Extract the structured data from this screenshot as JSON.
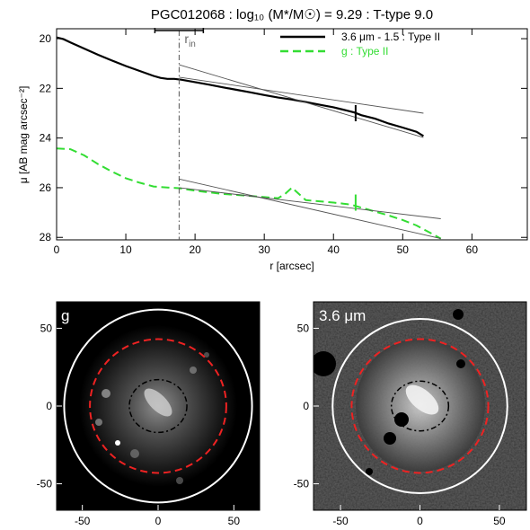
{
  "chart_data": [
    {
      "type": "line",
      "title": "PGC012068 : log₁₀ (M*/M☉) = 9.29 : T-type 9.0",
      "xlabel": "r [arcsec]",
      "ylabel": "μ [AB mag arcsec⁻²]",
      "xlim": [
        0,
        68
      ],
      "ylim": [
        28.1,
        19.6
      ],
      "y_inverted": true,
      "x_ticks": [
        0,
        10,
        20,
        30,
        40,
        50,
        60
      ],
      "y_ticks": [
        20,
        22,
        24,
        26,
        28
      ],
      "r_in_label": "r",
      "r_in_sub": "in",
      "r_in": 17.7,
      "r_in_errorbar": [
        14.2,
        21.2
      ],
      "break_marks": [
        {
          "series": "3.6 μm - 1.5 : Type II",
          "x": 43.2,
          "y": 23.0
        },
        {
          "series": "g : Type II",
          "x": 43.2,
          "y": 26.6
        }
      ],
      "legend_position": "top-right",
      "series": [
        {
          "name": "3.6 μm - 1.5 : Type II",
          "color": "#000000",
          "style": "solid",
          "x": [
            0,
            1,
            2,
            4,
            6,
            8,
            10,
            12,
            14,
            15,
            16,
            17,
            18,
            20,
            22,
            24,
            26,
            28,
            30,
            32,
            34,
            36,
            38,
            40,
            42,
            43,
            44,
            46,
            48,
            50,
            52,
            53
          ],
          "y": [
            19.95,
            20.02,
            20.15,
            20.4,
            20.65,
            20.88,
            21.1,
            21.3,
            21.5,
            21.58,
            21.62,
            21.62,
            21.65,
            21.75,
            21.85,
            21.96,
            22.06,
            22.16,
            22.27,
            22.37,
            22.45,
            22.55,
            22.66,
            22.76,
            22.9,
            22.97,
            23.08,
            23.22,
            23.42,
            23.58,
            23.75,
            23.92
          ]
        },
        {
          "name": "3.6 μm inner fit",
          "color": "#555555",
          "style": "thin",
          "x": [
            17.7,
            53
          ],
          "y": [
            21.55,
            23.0
          ]
        },
        {
          "name": "3.6 μm outer fit",
          "color": "#555555",
          "style": "thin",
          "x": [
            17.7,
            53
          ],
          "y": [
            21.05,
            23.98
          ]
        },
        {
          "name": "g : Type II",
          "color": "#33dd33",
          "style": "dashed",
          "x": [
            0,
            2,
            4,
            6,
            8,
            10,
            12,
            14,
            16,
            17.7,
            20,
            24,
            28,
            30,
            32,
            33,
            34,
            35,
            36,
            38,
            40,
            42,
            43,
            44,
            46,
            48,
            50,
            52,
            54,
            55.5
          ],
          "y": [
            24.42,
            24.45,
            24.7,
            25.05,
            25.35,
            25.62,
            25.8,
            25.95,
            25.99,
            26.02,
            26.12,
            26.25,
            26.33,
            26.38,
            26.42,
            26.25,
            26.0,
            26.25,
            26.5,
            26.55,
            26.6,
            26.66,
            26.72,
            26.8,
            26.96,
            27.12,
            27.3,
            27.52,
            27.82,
            28.05
          ]
        },
        {
          "name": "g inner fit",
          "color": "#555555",
          "style": "thin",
          "x": [
            17.7,
            55.5
          ],
          "y": [
            26.0,
            27.25
          ]
        },
        {
          "name": "g outer fit",
          "color": "#555555",
          "style": "thin",
          "x": [
            17.7,
            55.5
          ],
          "y": [
            25.65,
            28.05
          ]
        }
      ]
    },
    {
      "type": "heatmap",
      "panel_label": "g",
      "xlim": [
        -67,
        67
      ],
      "ylim": [
        -67,
        67
      ],
      "x_ticks": [
        -50,
        0,
        50
      ],
      "y_ticks": [
        -50,
        0,
        50
      ],
      "ellipses": [
        {
          "name": "outer boundary",
          "color": "#ffffff",
          "style": "solid",
          "a": 62,
          "b": 62
        },
        {
          "name": "break radius",
          "color": "#ee2222",
          "style": "dashed",
          "a": 45,
          "b": 43
        },
        {
          "name": "r_in",
          "color": "#000000",
          "style": "dashdot",
          "a": 19,
          "b": 17
        }
      ]
    },
    {
      "type": "heatmap",
      "panel_label": "3.6 μm",
      "xlim": [
        -67,
        67
      ],
      "ylim": [
        -67,
        67
      ],
      "x_ticks": [
        -50,
        0,
        50
      ],
      "y_ticks": [
        -50,
        0,
        50
      ],
      "ellipses": [
        {
          "name": "outer boundary",
          "color": "#ffffff",
          "style": "solid",
          "a": 55,
          "b": 56
        },
        {
          "name": "break radius",
          "color": "#ee2222",
          "style": "dashed",
          "a": 43,
          "b": 43
        },
        {
          "name": "r_in",
          "color": "#000000",
          "style": "dashdot",
          "a": 18,
          "b": 16
        }
      ]
    }
  ]
}
